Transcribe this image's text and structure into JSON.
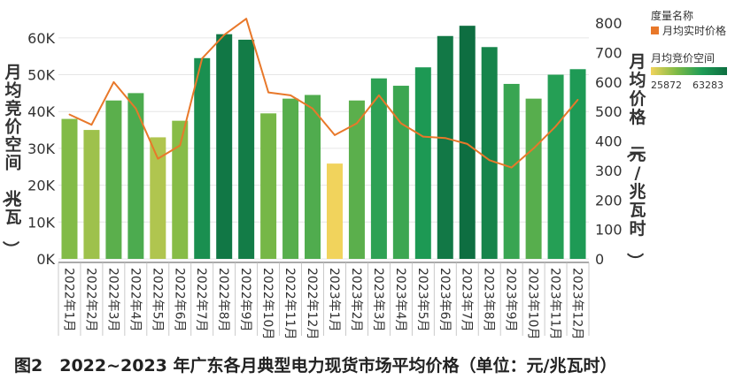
{
  "chart_data": {
    "type": "bar+line",
    "categories": [
      "2022年1月",
      "2022年2月",
      "2022年3月",
      "2022年4月",
      "2022年5月",
      "2022年6月",
      "2022年7月",
      "2022年8月",
      "2022年9月",
      "2022年10月",
      "2022年11月",
      "2022年12月",
      "2023年1月",
      "2023年2月",
      "2023年3月",
      "2023年4月",
      "2023年5月",
      "2023年6月",
      "2023年7月",
      "2023年8月",
      "2023年9月",
      "2023年10月",
      "2023年11月",
      "2023年12月"
    ],
    "bar_series": {
      "name": "月均竞价空间",
      "unit": "兆瓦",
      "values": [
        38000,
        35000,
        43000,
        45000,
        33000,
        37500,
        54500,
        61000,
        59500,
        39500,
        43500,
        44500,
        25872,
        43000,
        49000,
        47000,
        52000,
        60500,
        63283,
        57500,
        47500,
        43500,
        50000,
        51500
      ]
    },
    "line_series": {
      "name": "月均实时价格",
      "unit": "元/兆瓦时",
      "values": [
        490,
        455,
        600,
        510,
        340,
        385,
        680,
        760,
        815,
        565,
        555,
        510,
        420,
        460,
        555,
        460,
        415,
        410,
        390,
        335,
        310,
        375,
        450,
        540
      ]
    },
    "y_left": {
      "label": "月均竞价空间（兆瓦）",
      "ticks": [
        "0K",
        "10K",
        "20K",
        "30K",
        "40K",
        "50K",
        "60K"
      ],
      "range": [
        0,
        65000
      ]
    },
    "y_right": {
      "label": "月均价格（元/兆瓦时）",
      "ticks": [
        "0",
        "100",
        "200",
        "300",
        "400",
        "500",
        "600",
        "700",
        "800"
      ],
      "range": [
        0,
        812.5
      ]
    },
    "legend": {
      "title": "度量名称",
      "line_name": "月均实时价格",
      "bar_name": "月均竞价空间",
      "min_label": "25872",
      "max_label": "63283",
      "min": 25872,
      "max": 63283
    },
    "colors": {
      "line": "#e8782a",
      "ramp": [
        "#f1d35c",
        "#7fba46",
        "#1f9d56",
        "#0e6e41"
      ]
    },
    "caption": "图2　2022~2023 年广东各月典型电力现货市场平均价格（单位：元/兆瓦时）"
  }
}
